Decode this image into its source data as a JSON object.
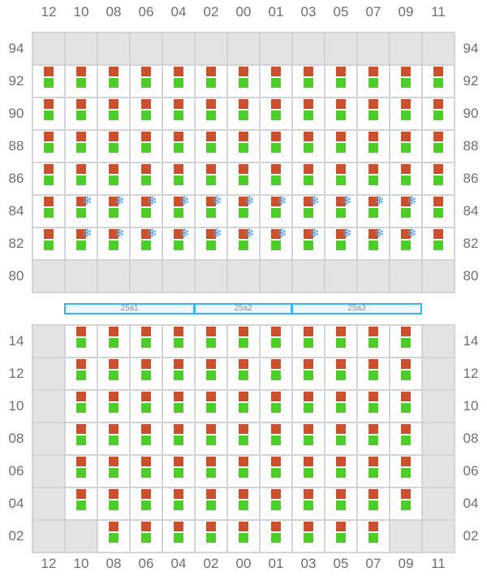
{
  "columns": [
    "12",
    "10",
    "08",
    "06",
    "04",
    "02",
    "00",
    "01",
    "03",
    "05",
    "07",
    "09",
    "11"
  ],
  "legend_colors": {
    "container_top": "#c9502a",
    "container_bottom": "#4ccd2a",
    "empty_slot": "#e4e4e7",
    "reefer_icon": "#4a9ee8",
    "bay_border": "#3bb3f0"
  },
  "icons": {
    "reefer": "snowflake-icon"
  },
  "top_grid": {
    "rows": [
      {
        "tier": "94",
        "slots": "0000000000000"
      },
      {
        "tier": "92",
        "slots": "1111111111111"
      },
      {
        "tier": "90",
        "slots": "1111111111111"
      },
      {
        "tier": "88",
        "slots": "1111111111111"
      },
      {
        "tier": "86",
        "slots": "1111111111111"
      },
      {
        "tier": "84",
        "slots": "1222222222221"
      },
      {
        "tier": "82",
        "slots": "1222222222221"
      },
      {
        "tier": "80",
        "slots": "0000000000000"
      }
    ]
  },
  "bays": [
    {
      "label": "25a1"
    },
    {
      "label": "25a2"
    },
    {
      "label": "25a3"
    }
  ],
  "bottom_grid": {
    "rows": [
      {
        "tier": "14",
        "slots": "0111111111110"
      },
      {
        "tier": "12",
        "slots": "0111111111110"
      },
      {
        "tier": "10",
        "slots": "0111111111110"
      },
      {
        "tier": "08",
        "slots": "0111111111110"
      },
      {
        "tier": "06",
        "slots": "0111111111110"
      },
      {
        "tier": "04",
        "slots": "0111111111110"
      },
      {
        "tier": "02",
        "slots": "0011111111100"
      }
    ]
  }
}
